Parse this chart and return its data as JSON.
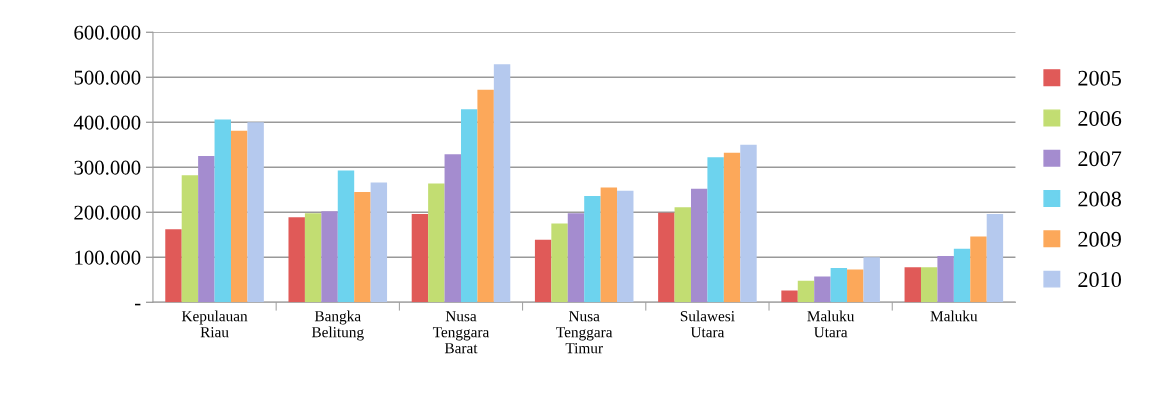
{
  "chart_data": {
    "type": "bar",
    "categories": [
      "Kepulauan\nRiau",
      "Bangka\nBelitung",
      "Nusa\nTenggara\nBarat",
      "Nusa\nTenggara\nTimur",
      "Sulawesi\nUtara",
      "Maluku\nUtara",
      "Maluku"
    ],
    "series": [
      {
        "name": "2005",
        "color": "#e05a58",
        "values": [
          162,
          189,
          196,
          139,
          199,
          26,
          78
        ]
      },
      {
        "name": "2006",
        "color": "#c2dd72",
        "values": [
          282,
          198,
          264,
          175,
          211,
          48,
          78
        ]
      },
      {
        "name": "2007",
        "color": "#a48ccf",
        "values": [
          325,
          202,
          329,
          198,
          252,
          57,
          103
        ]
      },
      {
        "name": "2008",
        "color": "#6dd3ee",
        "values": [
          406,
          293,
          429,
          236,
          322,
          76,
          119
        ]
      },
      {
        "name": "2009",
        "color": "#fca85a",
        "values": [
          381,
          245,
          472,
          255,
          332,
          73,
          146
        ]
      },
      {
        "name": "2010",
        "color": "#b5c9ee",
        "values": [
          400,
          266,
          529,
          248,
          350,
          100,
          196
        ]
      }
    ],
    "ylim": [
      0,
      600
    ],
    "yticks": [
      {
        "value": 0,
        "label": "-"
      },
      {
        "value": 100,
        "label": "100.000"
      },
      {
        "value": 200,
        "label": "200.000"
      },
      {
        "value": 300,
        "label": "300.000"
      },
      {
        "value": 400,
        "label": "400.000"
      },
      {
        "value": 500,
        "label": "500.000"
      },
      {
        "value": 600,
        "label": "600.000"
      }
    ],
    "grid": "y",
    "legend": "right"
  }
}
